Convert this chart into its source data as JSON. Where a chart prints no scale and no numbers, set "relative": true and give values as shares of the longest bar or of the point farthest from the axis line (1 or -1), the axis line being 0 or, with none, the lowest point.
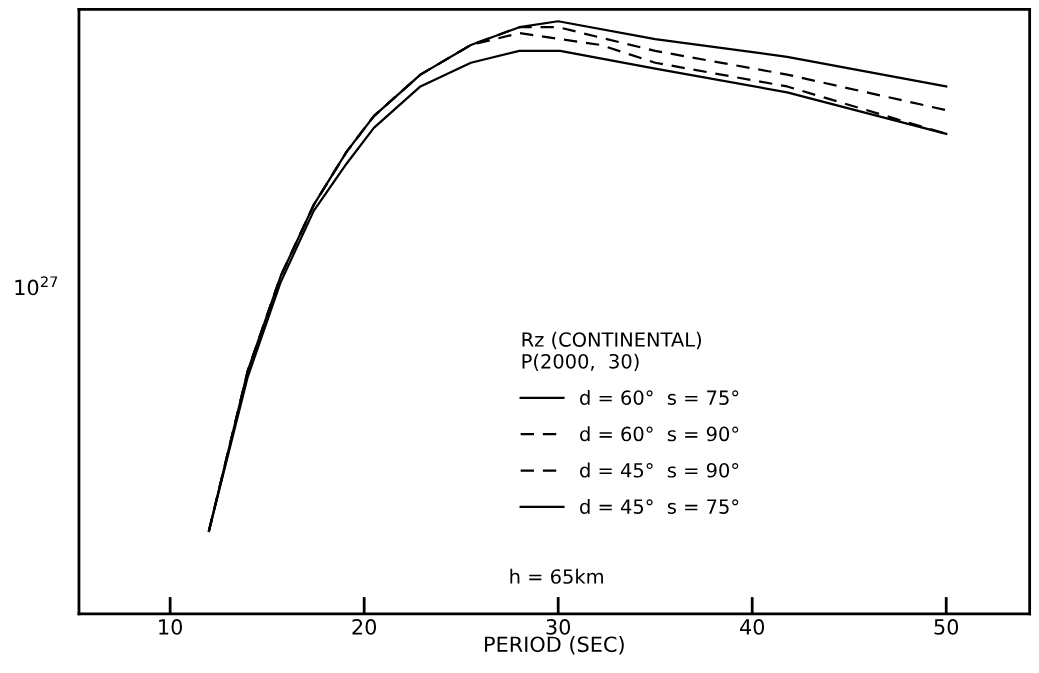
{
  "chart_data": {
    "type": "line",
    "relative": true,
    "xlabel": "PERIOD (SEC)",
    "ylabel": "10$^{27}$",
    "legend_title": "Rz (CONTINENTAL)\nP(2000,  30)",
    "annotations": [
      "h = 65km"
    ],
    "xlim": [
      5.3,
      54.3
    ],
    "xticks": [
      10,
      20,
      30,
      40,
      50
    ],
    "grid": false,
    "legend": "bottom",
    "marker": "none",
    "series": [
      {
        "name": "d = 60°  s = 75°",
        "color": "#000000",
        "line_style": "solid",
        "x": [
          12,
          14,
          15.7,
          17.4,
          19.1,
          20.5,
          22.9,
          25.5,
          28,
          30,
          35,
          41.8,
          50
        ],
        "values": [
          0.14,
          0.41,
          0.57,
          0.69,
          0.78,
          0.84,
          0.91,
          0.96,
          0.99,
          1.0,
          0.97,
          0.94,
          0.89
        ]
      },
      {
        "name": "d = 60°  s = 90°",
        "color": "#000000",
        "line_style": "dashed",
        "x": [
          12,
          14,
          15.7,
          17.4,
          19.1,
          20.5,
          22.9,
          25.5,
          28,
          30,
          35,
          41.8,
          50
        ],
        "values": [
          0.14,
          0.41,
          0.57,
          0.69,
          0.78,
          0.84,
          0.91,
          0.96,
          0.99,
          0.99,
          0.95,
          0.91,
          0.85
        ]
      },
      {
        "name": "d = 45°  s = 90°",
        "color": "#000000",
        "line_style": "dashed",
        "x": [
          12,
          14,
          15.7,
          17.4,
          19.1,
          20.5,
          22.9,
          25.5,
          28,
          32.2,
          35,
          41.8,
          50
        ],
        "values": [
          0.14,
          0.41,
          0.57,
          0.69,
          0.78,
          0.84,
          0.91,
          0.96,
          0.98,
          0.96,
          0.93,
          0.89,
          0.81
        ]
      },
      {
        "name": "d = 45°  s = 75°",
        "color": "#000000",
        "line_style": "solid",
        "x": [
          12,
          14,
          15.7,
          17.4,
          19.1,
          20.5,
          22.9,
          25.5,
          28,
          30.1,
          35,
          41.8,
          50
        ],
        "values": [
          0.14,
          0.4,
          0.56,
          0.68,
          0.76,
          0.82,
          0.89,
          0.93,
          0.95,
          0.95,
          0.92,
          0.88,
          0.81
        ]
      }
    ]
  }
}
